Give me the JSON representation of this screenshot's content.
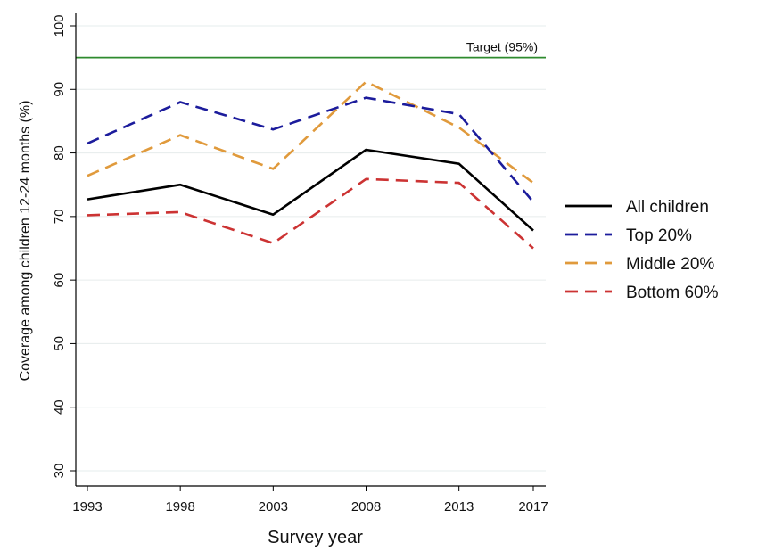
{
  "chart_data": {
    "type": "line",
    "x": [
      1993,
      1998,
      2003,
      2008,
      2013,
      2017
    ],
    "xlabel": "Survey year",
    "ylabel": "Coverage among children 12-24 months (%)",
    "ylim": [
      30,
      100
    ],
    "yticks": [
      30,
      40,
      50,
      60,
      70,
      80,
      90,
      100
    ],
    "grid": "horizontal",
    "legend_position": "right",
    "reference_line": {
      "label": "Target (95%)",
      "value": 95,
      "color": "#2e8b2e"
    },
    "series": [
      {
        "name": "All children",
        "values": [
          72.7,
          75.0,
          70.3,
          80.5,
          78.3,
          67.8
        ],
        "color": "#000000",
        "dash": "solid"
      },
      {
        "name": "Top 20%",
        "values": [
          81.5,
          88.0,
          83.7,
          88.7,
          86.1,
          72.3
        ],
        "color": "#1c1c9c",
        "dash": "dashed"
      },
      {
        "name": "Middle 20%",
        "values": [
          76.4,
          82.8,
          77.5,
          91.2,
          84.0,
          75.3
        ],
        "color": "#e09a3c",
        "dash": "dashed"
      },
      {
        "name": "Bottom 60%",
        "values": [
          70.2,
          70.7,
          65.8,
          75.9,
          75.3,
          65.0
        ],
        "color": "#cc3333",
        "dash": "dashed"
      }
    ]
  }
}
